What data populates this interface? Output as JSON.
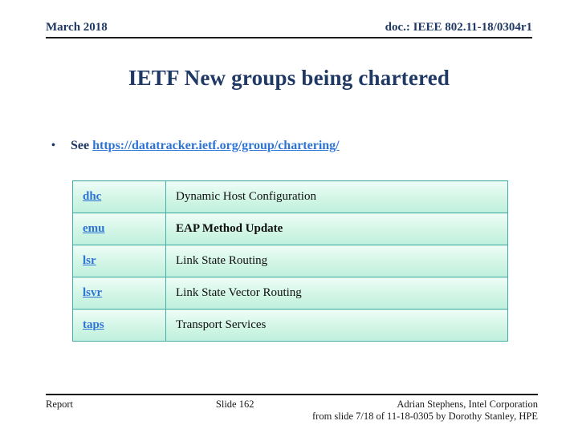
{
  "header": {
    "date": "March 2018",
    "doc": "doc.: IEEE 802.11-18/0304r1"
  },
  "title": "IETF New groups being chartered",
  "bullet": {
    "marker": "•",
    "prefix": "See ",
    "link": "https://datatracker.ietf.org/group/chartering/"
  },
  "table": {
    "rows": [
      {
        "group": "dhc",
        "description": "Dynamic Host Configuration",
        "bold": false
      },
      {
        "group": "emu",
        "description": "EAP Method Update",
        "bold": true
      },
      {
        "group": "lsr",
        "description": "Link State Routing",
        "bold": false
      },
      {
        "group": "lsvr",
        "description": "Link State Vector Routing",
        "bold": false
      },
      {
        "group": "taps",
        "description": "Transport Services",
        "bold": false
      }
    ]
  },
  "footer": {
    "left": "Report",
    "center": "Slide 162",
    "right_line1": "Adrian Stephens, Intel Corporation",
    "right_line2": "from slide 7/18 of 11-18-0305 by Dorothy Stanley, HPE"
  },
  "colors": {
    "navy": "#1f3864",
    "link": "#2e74d6",
    "tborder": "#4aaca8",
    "rule": "#1c1c1c"
  }
}
